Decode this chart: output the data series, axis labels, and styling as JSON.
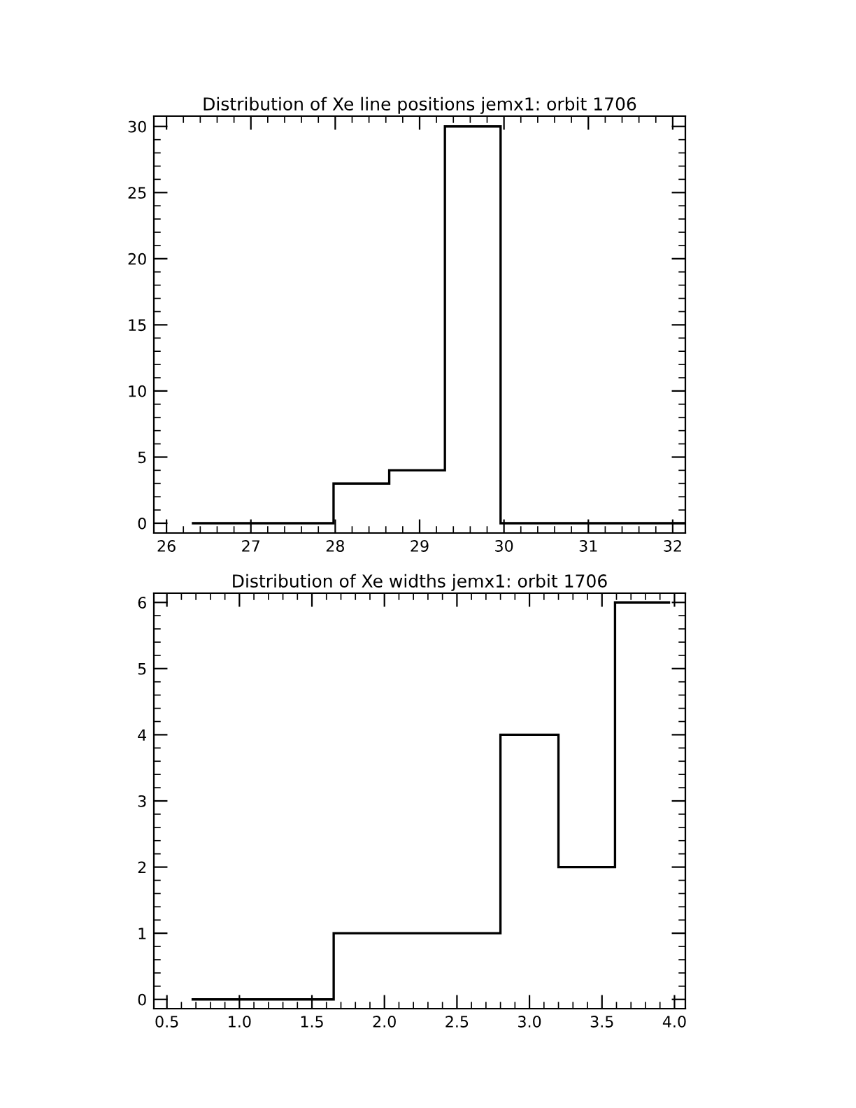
{
  "chart_data": [
    {
      "type": "histogram",
      "title": "Distribution of Xe line positions jemx1: orbit 1706",
      "color": "#000000",
      "bins": [
        26.3,
        27.98,
        28.64,
        29.3,
        29.96,
        32.15
      ],
      "values": [
        0,
        3,
        4,
        30,
        0
      ],
      "xlim": [
        25.85,
        32.15
      ],
      "ylim": [
        -0.74,
        30.78
      ],
      "xticks": [
        26,
        27,
        28,
        29,
        30,
        31,
        32
      ],
      "yticks": [
        0,
        5,
        10,
        15,
        20,
        25,
        30
      ],
      "grid": false
    },
    {
      "type": "histogram",
      "title": "Distribution of Xe widths jemx1: orbit 1706",
      "color": "#000000",
      "bins": [
        0.67,
        1.65,
        2.8,
        3.2,
        3.59,
        3.97
      ],
      "values": [
        0,
        1,
        4,
        2,
        6
      ],
      "xlim": [
        0.41,
        4.075
      ],
      "ylim": [
        -0.14,
        6.14
      ],
      "xticks": [
        0.5,
        {
          "value": 1,
          "label": "1.0"
        },
        1.5,
        {
          "value": 2,
          "label": "2.0"
        },
        2.5,
        {
          "value": 3,
          "label": "3.0"
        },
        3.5,
        {
          "value": 4,
          "label": "4.0"
        }
      ],
      "yticks": [
        0,
        1,
        2,
        3,
        4,
        5,
        6
      ],
      "grid": false
    }
  ]
}
